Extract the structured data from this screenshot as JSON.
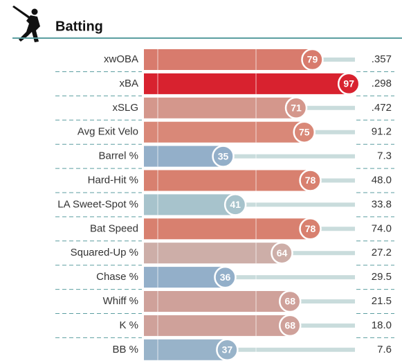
{
  "chart_data": {
    "type": "bar",
    "title": "Batting",
    "categories": [
      "xwOBA",
      "xBA",
      "xSLG",
      "Avg Exit Velo",
      "Barrel %",
      "Hard-Hit %",
      "LA Sweet-Spot %",
      "Bat Speed",
      "Squared-Up %",
      "Chase %",
      "Whiff %",
      "K %",
      "BB %"
    ],
    "values": [
      79,
      97,
      71,
      75,
      35,
      78,
      41,
      78,
      64,
      36,
      68,
      68,
      37
    ],
    "colors": [
      "#d87b6d",
      "#d8222f",
      "#d4978c",
      "#d98878",
      "#93afc9",
      "#d8806f",
      "#a7c3cc",
      "#d8806f",
      "#cdaea8",
      "#93afc9",
      "#cfa19a",
      "#cfa19a",
      "#98b3c9"
    ],
    "stats": [
      ".357",
      ".298",
      ".472",
      "91.2",
      "7.3",
      "48.0",
      "33.8",
      "74.0",
      "27.2",
      "29.5",
      "21.5",
      "18.0",
      "7.6"
    ],
    "xlim": [
      0,
      100
    ]
  }
}
